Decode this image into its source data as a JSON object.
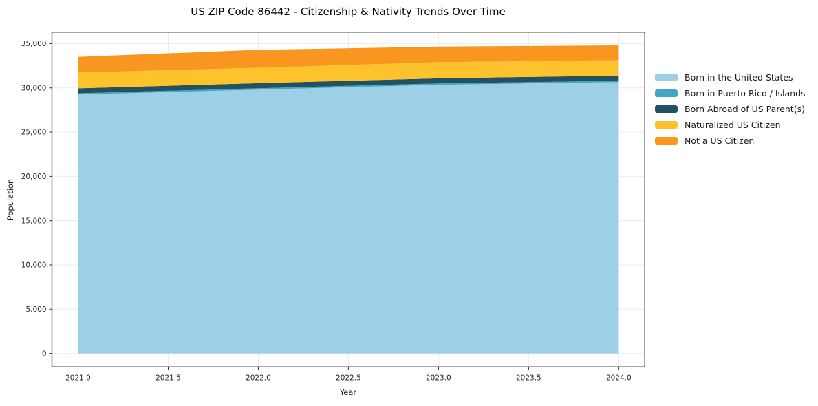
{
  "chart_data": {
    "type": "area",
    "stacked": true,
    "title": "US ZIP Code 86442 - Citizenship & Nativity Trends Over Time",
    "xlabel": "Year",
    "ylabel": "Population",
    "x": [
      2021,
      2022,
      2023,
      2024
    ],
    "series": [
      {
        "name": "Born in the United States",
        "color": "#9dd0e7",
        "values": [
          29250,
          29800,
          30350,
          30650
        ]
      },
      {
        "name": "Born in Puerto Rico / Islands",
        "color": "#41a7c5",
        "values": [
          150,
          160,
          160,
          160
        ]
      },
      {
        "name": "Born Abroad of US Parent(s)",
        "color": "#25505f",
        "values": [
          550,
          570,
          570,
          580
        ]
      },
      {
        "name": "Naturalized US Citizen",
        "color": "#fdc32d",
        "values": [
          1780,
          1750,
          1820,
          1750
        ]
      },
      {
        "name": "Not a US Citizen",
        "color": "#f8961f",
        "values": [
          1770,
          2020,
          1760,
          1660
        ]
      }
    ],
    "totals": [
      33500,
      34300,
      34660,
      34800
    ],
    "xticks": {
      "values": [
        2021.0,
        2021.5,
        2022.0,
        2022.5,
        2023.0,
        2023.5,
        2024.0
      ],
      "labels": [
        "2021.0",
        "2021.5",
        "2022.0",
        "2022.5",
        "2023.0",
        "2023.5",
        "2024.0"
      ]
    },
    "yticks": {
      "values": [
        0,
        5000,
        10000,
        15000,
        20000,
        25000,
        30000,
        35000
      ],
      "labels": [
        "0",
        "5,000",
        "10,000",
        "15,000",
        "20,000",
        "25,000",
        "30,000",
        "35,000"
      ]
    },
    "xlim": [
      2020.855,
      2024.145
    ],
    "ylim": [
      -1530,
      36300
    ],
    "grid": true,
    "legend_position": "right-outside",
    "colors": {
      "gridline": "#ececec",
      "spine": "#000000",
      "tick_text": "#262626"
    }
  }
}
